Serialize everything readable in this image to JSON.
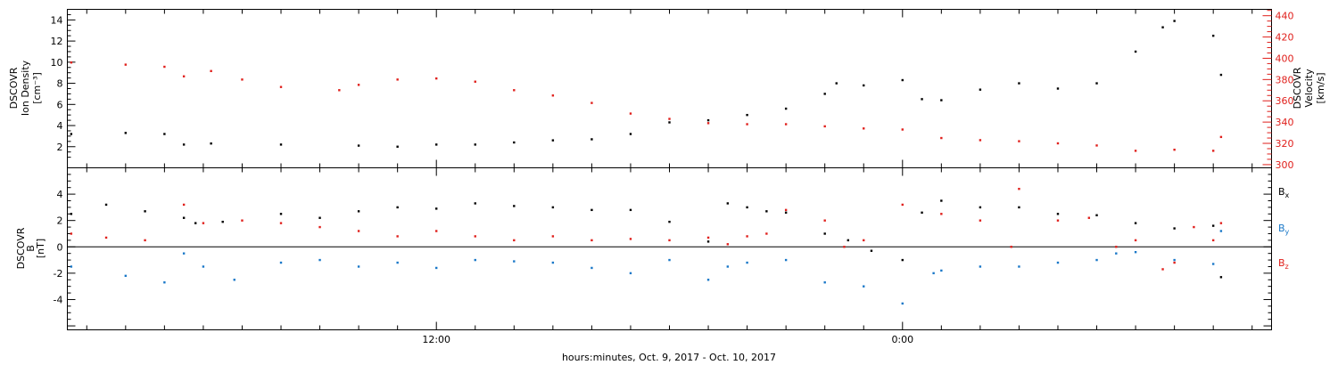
{
  "xlabel": "hours:minutes, Oct. 9, 2017 - Oct. 10, 2017",
  "colors": {
    "black": "#000000",
    "red": "#e0201c",
    "blue": "#1a78c8"
  },
  "chart_data": [
    {
      "type": "scatter",
      "panel": "plasma",
      "ylabel_left": [
        "DSCOVR",
        "Ion Density",
        "[cm⁻³]"
      ],
      "ylabel_right": [
        "DSCOVR",
        "Velocity",
        "[km/s]"
      ],
      "x_ticks": [
        "12:00",
        "0:00",
        "12:00"
      ],
      "x_range_hours": [
        2.5,
        33.5
      ],
      "y_left_range": [
        0,
        15
      ],
      "y_left_ticks": [
        2,
        4,
        6,
        8,
        10,
        12,
        14
      ],
      "y_right_range": [
        297,
        446
      ],
      "y_right_ticks": [
        300,
        320,
        340,
        360,
        380,
        400,
        420,
        440
      ],
      "grid": false,
      "series": [
        {
          "color": "#000000",
          "axis": "left",
          "x": [
            2.6,
            4.0,
            5.0,
            5.5,
            6.2,
            8.0,
            10.0,
            11.0,
            12.0,
            13.0,
            14.0,
            15.0,
            16.0,
            17.0,
            18.0,
            19.0,
            20.0,
            21.0,
            22.0,
            22.3,
            23.0,
            24.0,
            24.5,
            25.0,
            26.0,
            27.0,
            28.0,
            29.0,
            30.0,
            30.7,
            31.0,
            32.0,
            32.2
          ],
          "values": [
            3.2,
            3.3,
            3.2,
            2.2,
            2.3,
            2.2,
            2.1,
            2.0,
            2.2,
            2.2,
            2.4,
            2.6,
            2.7,
            3.2,
            4.3,
            4.5,
            5.0,
            5.6,
            7.0,
            8.0,
            7.8,
            8.3,
            6.5,
            6.4,
            7.4,
            8.0,
            7.5,
            8.0,
            11.0,
            13.3,
            13.9,
            12.5,
            8.8
          ]
        },
        {
          "color": "#e0201c",
          "axis": "right",
          "x": [
            2.6,
            4.0,
            5.0,
            5.5,
            6.2,
            7.0,
            8.0,
            9.5,
            10.0,
            11.0,
            12.0,
            13.0,
            14.0,
            15.0,
            16.0,
            17.0,
            18.0,
            19.0,
            20.0,
            21.0,
            22.0,
            23.0,
            24.0,
            25.0,
            26.0,
            27.0,
            28.0,
            29.0,
            30.0,
            31.0,
            32.0,
            32.2
          ],
          "values": [
            396,
            394,
            392,
            383,
            388,
            380,
            373,
            370,
            375,
            380,
            381,
            378,
            370,
            365,
            358,
            348,
            343,
            339,
            338,
            338,
            336,
            334,
            333,
            325,
            323,
            322,
            320,
            318,
            313,
            314,
            313,
            326
          ]
        }
      ]
    },
    {
      "type": "scatter",
      "panel": "magnetic",
      "ylabel": [
        "DSCOVR",
        "B",
        "[nT]"
      ],
      "x_ticks": [
        "12:00",
        "0:00",
        "12:00"
      ],
      "y_range": [
        -6.3,
        6.0
      ],
      "y_ticks": [
        -4,
        -2,
        0,
        2,
        4
      ],
      "zero_line": true,
      "grid": false,
      "legend": "right",
      "series": [
        {
          "name": "Bx",
          "legend_base": "B",
          "legend_sub": "x",
          "color": "#000000",
          "x": [
            2.6,
            3.5,
            4.5,
            5.5,
            5.8,
            6.5,
            8.0,
            9.0,
            10.0,
            11.0,
            12.0,
            13.0,
            14.0,
            15.0,
            16.0,
            17.0,
            18.0,
            19.0,
            19.5,
            20.0,
            20.5,
            21.0,
            22.0,
            22.6,
            23.2,
            24.0,
            24.5,
            25.0,
            26.0,
            27.0,
            28.0,
            29.0,
            30.0,
            31.0,
            32.0,
            32.2
          ],
          "values": [
            2.5,
            3.2,
            2.7,
            2.2,
            1.8,
            1.9,
            2.5,
            2.2,
            2.7,
            3.0,
            2.9,
            3.3,
            3.1,
            3.0,
            2.8,
            2.8,
            1.9,
            0.4,
            3.3,
            3.0,
            2.7,
            2.6,
            1.0,
            0.5,
            -0.3,
            -1.0,
            2.6,
            3.5,
            3.0,
            3.0,
            2.5,
            2.4,
            1.8,
            1.4,
            1.6,
            -2.3
          ]
        },
        {
          "name": "By",
          "legend_base": "B",
          "legend_sub": "y",
          "color": "#1a78c8",
          "x": [
            2.6,
            4.0,
            5.0,
            5.5,
            6.0,
            6.8,
            8.0,
            9.0,
            10.0,
            11.0,
            12.0,
            13.0,
            14.0,
            15.0,
            16.0,
            17.0,
            18.0,
            19.0,
            19.5,
            20.0,
            21.0,
            22.0,
            23.0,
            24.0,
            24.8,
            25.0,
            26.0,
            27.0,
            28.0,
            29.0,
            29.5,
            30.0,
            31.0,
            32.0,
            32.2
          ],
          "values": [
            -1.5,
            -2.2,
            -2.7,
            -0.5,
            -1.5,
            -2.5,
            -1.2,
            -1.0,
            -1.5,
            -1.2,
            -1.6,
            -1.0,
            -1.1,
            -1.2,
            -1.6,
            -2.0,
            -1.0,
            -2.5,
            -1.5,
            -1.2,
            -1.0,
            -2.7,
            -3.0,
            -4.3,
            -2.0,
            -1.8,
            -1.5,
            -1.5,
            -1.2,
            -1.0,
            -0.5,
            -0.4,
            -1.0,
            -1.3,
            1.2
          ]
        },
        {
          "name": "Bz",
          "legend_base": "B",
          "legend_sub": "z",
          "color": "#e0201c",
          "x": [
            2.6,
            3.5,
            4.5,
            5.5,
            6.0,
            7.0,
            8.0,
            9.0,
            10.0,
            11.0,
            12.0,
            13.0,
            14.0,
            15.0,
            16.0,
            17.0,
            18.0,
            19.0,
            19.5,
            20.0,
            20.5,
            21.0,
            22.0,
            22.5,
            23.0,
            24.0,
            25.0,
            26.0,
            26.8,
            27.0,
            28.0,
            28.8,
            29.5,
            30.0,
            30.7,
            31.0,
            31.5,
            32.0,
            32.2
          ],
          "values": [
            1.0,
            0.7,
            0.5,
            3.2,
            1.8,
            2.0,
            1.8,
            1.5,
            1.2,
            0.8,
            1.2,
            0.8,
            0.5,
            0.8,
            0.5,
            0.6,
            0.5,
            0.7,
            0.2,
            0.8,
            1.0,
            2.8,
            2.0,
            0.0,
            0.5,
            3.2,
            2.5,
            2.0,
            0.0,
            4.4,
            2.0,
            2.2,
            0.0,
            0.5,
            -1.7,
            -1.2,
            1.5,
            0.5,
            1.8
          ]
        }
      ]
    }
  ]
}
